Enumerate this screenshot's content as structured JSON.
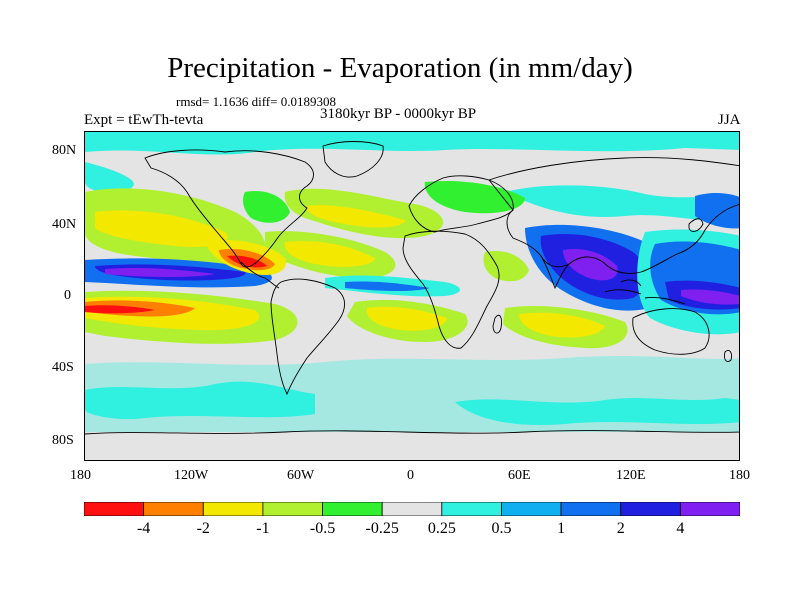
{
  "map": {
    "title": "Precipitation - Evaporation (in mm/day)",
    "stats": "rmsd= 1.1636 diff= 0.0189308",
    "experiment": "Expt = tEwTh-tevta",
    "period": "3180kyr BP - 0000kyr BP",
    "season": "JJA",
    "lat_ticks": [
      "80N",
      "40N",
      "0",
      "40S",
      "80S"
    ],
    "lon_ticks": [
      "180",
      "120W",
      "60W",
      "0",
      "60E",
      "120E",
      "180"
    ]
  },
  "colorbar": {
    "colors": [
      "#ff1010",
      "#ff8000",
      "#f2e800",
      "#b0f030",
      "#30f030",
      "#e4e4e4",
      "#30f0e0",
      "#10b0f0",
      "#1070f0",
      "#2020e0",
      "#8020f0"
    ],
    "labels": [
      "-4",
      "-2",
      "-1",
      "-0.5",
      "-0.25",
      "0.25",
      "0.5",
      "1",
      "2",
      "4"
    ]
  },
  "colors": {
    "neutral": "#e4e4e4",
    "coast": "#000000"
  }
}
